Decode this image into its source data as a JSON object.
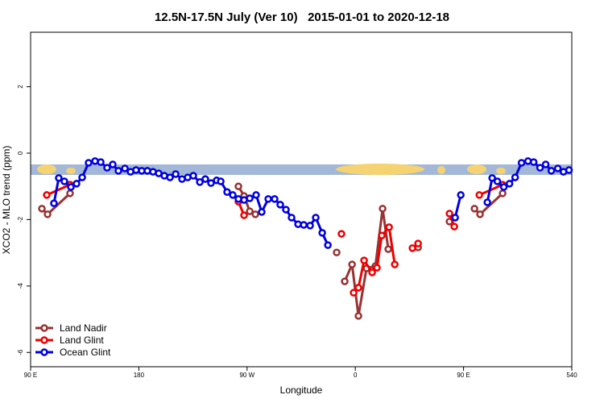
{
  "chart_data": {
    "type": "line",
    "title": "12.5N-17.5N July (Ver 10)   2015-01-01 to 2020-12-18",
    "x_label": "Longitude",
    "y_label": "XCO2 - MLO trend (ppm)",
    "xlim": [
      90,
      540
    ],
    "xticks": [
      {
        "value": 90,
        "label": "90 E"
      },
      180,
      {
        "value": 270,
        "label": "90 W"
      },
      {
        "value": 360,
        "label": "0"
      },
      {
        "value": 450,
        "label": "90 E"
      },
      540
    ],
    "ylim": [
      -6.43,
      3.64
    ],
    "yticks": [
      -6,
      -4,
      -2,
      0,
      2
    ],
    "legend": "bottom-left",
    "series": [
      {
        "name": "Land Nadir",
        "color": "#993333",
        "x": [
          99.4,
          104.1,
          122.8,
          null,
          262.8,
          267.5,
          272.2,
          276.9,
          null,
          344.5,
          null,
          351.2,
          357.3,
          362.6,
          369.3,
          376.7,
          382.7,
          387.4,
          null,
          412.2,
          null,
          438.3,
          null,
          459.1,
          463.7,
          482.5
        ],
        "values": [
          -1.67,
          -1.84,
          -1.21,
          null,
          -1.0,
          -1.29,
          -1.75,
          -1.84,
          null,
          -2.99,
          null,
          -3.86,
          -3.35,
          -4.9,
          -3.47,
          -3.4,
          -1.67,
          -2.89,
          null,
          -2.84,
          null,
          -2.06,
          null,
          -1.67,
          -1.84,
          -1.21
        ]
      },
      {
        "name": "Land Glint",
        "color": "#ee0000",
        "x": [
          103.4,
          122.8,
          null,
          262.8,
          267.5,
          null,
          348.5,
          null,
          358.6,
          362.6,
          367.3,
          374.0,
          378.0,
          382.0,
          388.1,
          392.8,
          null,
          407.5,
          412.2,
          null,
          438.3,
          442.3,
          null,
          463.1,
          482.5
        ],
        "values": [
          -1.26,
          -0.95,
          null,
          -1.46,
          -1.87,
          null,
          -2.43,
          null,
          -4.2,
          -4.05,
          -3.23,
          -3.59,
          -3.45,
          -2.48,
          -2.23,
          -3.35,
          null,
          -2.86,
          -2.72,
          null,
          -1.82,
          -2.21,
          null,
          -1.26,
          -0.95
        ]
      },
      {
        "name": "Ocean Glint",
        "color": "#0000dd",
        "x": [
          109.4,
          113.4,
          118.1,
          123.5,
          128.2,
          132.9,
          138.2,
          143.6,
          148.3,
          153.6,
          158.3,
          163.0,
          168.4,
          173.1,
          177.7,
          182.4,
          187.1,
          191.8,
          196.5,
          201.2,
          205.9,
          210.6,
          215.9,
          220.6,
          225.3,
          230.7,
          235.3,
          240.0,
          244.7,
          248.1,
          253.4,
          258.1,
          262.8,
          267.5,
          272.2,
          277.5,
          282.2,
          287.6,
          292.9,
          297.6,
          302.3,
          307.0,
          312.4,
          317.1,
          322.4,
          327.1,
          332.5,
          337.2,
          null,
          443.0,
          447.7,
          null,
          469.8,
          473.8,
          478.1,
          483.5,
          488.2,
          492.9,
          498.2,
          503.6,
          508.3,
          513.6,
          518.3,
          523.0,
          528.4,
          533.1,
          537.7
        ],
        "values": [
          -1.51,
          -0.75,
          -0.85,
          -1.02,
          -0.92,
          -0.73,
          -0.29,
          -0.24,
          -0.27,
          -0.44,
          -0.34,
          -0.53,
          -0.46,
          -0.56,
          -0.51,
          -0.53,
          -0.53,
          -0.56,
          -0.61,
          -0.68,
          -0.73,
          -0.63,
          -0.78,
          -0.73,
          -0.68,
          -0.87,
          -0.78,
          -0.9,
          -0.82,
          -0.85,
          -1.17,
          -1.26,
          -1.38,
          -1.41,
          -1.36,
          -1.26,
          -1.77,
          -1.38,
          -1.38,
          -1.55,
          -1.7,
          -1.94,
          -2.14,
          -2.16,
          -2.18,
          -1.94,
          -2.4,
          -2.77,
          null,
          -1.94,
          -1.26,
          null,
          -1.48,
          -0.75,
          -0.85,
          -1.02,
          -0.92,
          -0.73,
          -0.29,
          -0.24,
          -0.27,
          -0.44,
          -0.34,
          -0.53,
          -0.46,
          -0.56,
          -0.51
        ]
      }
    ]
  }
}
